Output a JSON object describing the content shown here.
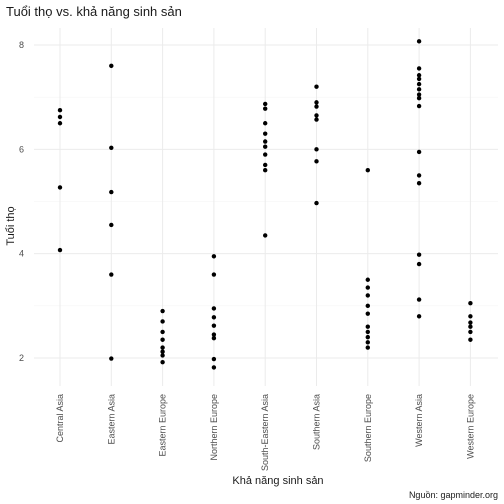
{
  "chart_data": {
    "type": "scatter",
    "title": "Tuổi thọ vs. khả năng sinh sản",
    "xlabel": "Khả năng sinh sản",
    "ylabel": "Tuổi thọ",
    "caption": "Nguồn: gapminder.org",
    "categories": [
      "Central Asia",
      "Eastern Asia",
      "Eastern Europe",
      "Northern Europe",
      "South-Eastern Asia",
      "Southern Asia",
      "Southern Europe",
      "Western Asia",
      "Western Europe"
    ],
    "ylim": [
      1.5,
      8.2
    ],
    "yticks": [
      2,
      4,
      6,
      8
    ],
    "grid": true,
    "point_color": "#000000",
    "points": [
      {
        "x": "Central Asia",
        "y": 6.75
      },
      {
        "x": "Central Asia",
        "y": 6.62
      },
      {
        "x": "Central Asia",
        "y": 6.5
      },
      {
        "x": "Central Asia",
        "y": 5.27
      },
      {
        "x": "Central Asia",
        "y": 4.07
      },
      {
        "x": "Eastern Asia",
        "y": 7.6
      },
      {
        "x": "Eastern Asia",
        "y": 6.03
      },
      {
        "x": "Eastern Asia",
        "y": 5.18
      },
      {
        "x": "Eastern Asia",
        "y": 4.55
      },
      {
        "x": "Eastern Asia",
        "y": 3.6
      },
      {
        "x": "Eastern Asia",
        "y": 1.99
      },
      {
        "x": "Eastern Europe",
        "y": 2.9
      },
      {
        "x": "Eastern Europe",
        "y": 2.7
      },
      {
        "x": "Eastern Europe",
        "y": 2.5
      },
      {
        "x": "Eastern Europe",
        "y": 2.35
      },
      {
        "x": "Eastern Europe",
        "y": 2.2
      },
      {
        "x": "Eastern Europe",
        "y": 2.12
      },
      {
        "x": "Eastern Europe",
        "y": 2.05
      },
      {
        "x": "Eastern Europe",
        "y": 1.92
      },
      {
        "x": "Northern Europe",
        "y": 3.95
      },
      {
        "x": "Northern Europe",
        "y": 3.6
      },
      {
        "x": "Northern Europe",
        "y": 2.95
      },
      {
        "x": "Northern Europe",
        "y": 2.78
      },
      {
        "x": "Northern Europe",
        "y": 2.62
      },
      {
        "x": "Northern Europe",
        "y": 2.45
      },
      {
        "x": "Northern Europe",
        "y": 2.38
      },
      {
        "x": "Northern Europe",
        "y": 1.98
      },
      {
        "x": "Northern Europe",
        "y": 1.82
      },
      {
        "x": "South-Eastern Asia",
        "y": 6.87
      },
      {
        "x": "South-Eastern Asia",
        "y": 6.78
      },
      {
        "x": "South-Eastern Asia",
        "y": 6.5
      },
      {
        "x": "South-Eastern Asia",
        "y": 6.3
      },
      {
        "x": "South-Eastern Asia",
        "y": 6.15
      },
      {
        "x": "South-Eastern Asia",
        "y": 6.05
      },
      {
        "x": "South-Eastern Asia",
        "y": 5.9
      },
      {
        "x": "South-Eastern Asia",
        "y": 5.7
      },
      {
        "x": "South-Eastern Asia",
        "y": 5.6
      },
      {
        "x": "South-Eastern Asia",
        "y": 4.35
      },
      {
        "x": "Southern Asia",
        "y": 7.2
      },
      {
        "x": "Southern Asia",
        "y": 6.9
      },
      {
        "x": "Southern Asia",
        "y": 6.82
      },
      {
        "x": "Southern Asia",
        "y": 6.65
      },
      {
        "x": "Southern Asia",
        "y": 6.57
      },
      {
        "x": "Southern Asia",
        "y": 6.0
      },
      {
        "x": "Southern Asia",
        "y": 5.77
      },
      {
        "x": "Southern Asia",
        "y": 4.97
      },
      {
        "x": "Southern Europe",
        "y": 5.6
      },
      {
        "x": "Southern Europe",
        "y": 3.5
      },
      {
        "x": "Southern Europe",
        "y": 3.35
      },
      {
        "x": "Southern Europe",
        "y": 3.2
      },
      {
        "x": "Southern Europe",
        "y": 3.0
      },
      {
        "x": "Southern Europe",
        "y": 2.85
      },
      {
        "x": "Southern Europe",
        "y": 2.6
      },
      {
        "x": "Southern Europe",
        "y": 2.5
      },
      {
        "x": "Southern Europe",
        "y": 2.4
      },
      {
        "x": "Southern Europe",
        "y": 2.3
      },
      {
        "x": "Southern Europe",
        "y": 2.2
      },
      {
        "x": "Western Asia",
        "y": 8.07
      },
      {
        "x": "Western Asia",
        "y": 7.55
      },
      {
        "x": "Western Asia",
        "y": 7.42
      },
      {
        "x": "Western Asia",
        "y": 7.35
      },
      {
        "x": "Western Asia",
        "y": 7.25
      },
      {
        "x": "Western Asia",
        "y": 7.15
      },
      {
        "x": "Western Asia",
        "y": 7.05
      },
      {
        "x": "Western Asia",
        "y": 6.98
      },
      {
        "x": "Western Asia",
        "y": 6.83
      },
      {
        "x": "Western Asia",
        "y": 5.95
      },
      {
        "x": "Western Asia",
        "y": 5.5
      },
      {
        "x": "Western Asia",
        "y": 5.35
      },
      {
        "x": "Western Asia",
        "y": 3.98
      },
      {
        "x": "Western Asia",
        "y": 3.8
      },
      {
        "x": "Western Asia",
        "y": 3.12
      },
      {
        "x": "Western Asia",
        "y": 2.8
      },
      {
        "x": "Western Europe",
        "y": 3.05
      },
      {
        "x": "Western Europe",
        "y": 2.8
      },
      {
        "x": "Western Europe",
        "y": 2.68
      },
      {
        "x": "Western Europe",
        "y": 2.6
      },
      {
        "x": "Western Europe",
        "y": 2.5
      },
      {
        "x": "Western Europe",
        "y": 2.35
      }
    ]
  }
}
